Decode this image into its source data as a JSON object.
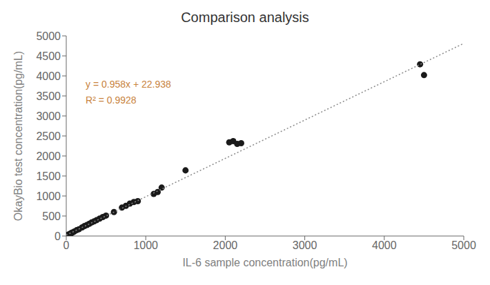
{
  "chart_data": {
    "type": "scatter",
    "title": "Comparison analysis",
    "x_label": "IL-6 sample concentration(pg/mL)",
    "y_label": "OkayBio test concentration(pg/mL)",
    "xlim": [
      0,
      5000
    ],
    "ylim": [
      0,
      5000
    ],
    "xticks": [
      0,
      1000,
      2000,
      3000,
      4000,
      5000
    ],
    "yticks": [
      0,
      500,
      1000,
      1500,
      2000,
      2500,
      3000,
      3500,
      4000,
      4500,
      5000
    ],
    "grid": false,
    "series": [
      {
        "type": "scatter",
        "color": "#1a1a1a",
        "marker": "circle",
        "x": [
          5,
          8,
          12,
          18,
          22,
          25,
          30,
          35,
          40,
          50,
          60,
          70,
          80,
          100,
          130,
          160,
          200,
          230,
          260,
          290,
          320,
          350,
          380,
          420,
          460,
          500,
          600,
          700,
          750,
          800,
          850,
          900,
          1100,
          1150,
          1200,
          1500,
          2050,
          2100,
          2150,
          2200,
          4450,
          4500
        ],
        "values": [
          5,
          8,
          15,
          20,
          25,
          28,
          35,
          40,
          45,
          55,
          68,
          80,
          88,
          110,
          145,
          170,
          215,
          250,
          275,
          305,
          340,
          365,
          395,
          435,
          475,
          510,
          600,
          710,
          755,
          810,
          850,
          870,
          1050,
          1100,
          1210,
          1640,
          2340,
          2370,
          2300,
          2320,
          4290,
          4020
        ]
      },
      {
        "type": "line",
        "color": "#888888",
        "line_style": "dotted",
        "x": [
          0,
          5000
        ],
        "values": [
          22.938,
          4812.938
        ]
      }
    ],
    "annotations": [
      {
        "text": "y = 0.958x + 22.938",
        "x": 200,
        "y": 3800,
        "color": "#c8823c"
      },
      {
        "text": "R² = 0.9928",
        "x": 200,
        "y": 3400,
        "color": "#c8823c"
      }
    ]
  }
}
